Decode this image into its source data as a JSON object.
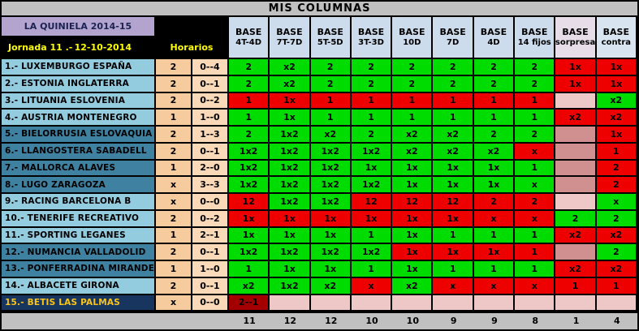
{
  "title": "MIS COLUMNAS",
  "header": {
    "competition": "LA QUINIELA 2014-15",
    "jornada": "Jornada 11 .-",
    "date": "12-10-2014",
    "horarios": "Horarios",
    "base_label": "BASE",
    "columns": [
      "4T-4D",
      "7T-7D",
      "5T-5D",
      "3T-3D",
      "10D",
      "7D",
      "4D",
      "14 fijos",
      "sorpresa",
      "contra"
    ]
  },
  "legend": {
    "hit_color": "#00dc00",
    "miss_color": "#ee0000",
    "empty_light_color": "#eec7c7",
    "empty_dark_color": "#d19090",
    "void_color": "#a50000",
    "row_light_color": "#93cbdf",
    "row_dark_color": "#3f81a1",
    "row_navy_color": "#17355f"
  },
  "rows": [
    {
      "name": "1.- LUXEMBURGO ESPAÑA",
      "pick": "2",
      "score": "0--4",
      "shade": "light",
      "cells": [
        {
          "v": "2",
          "c": "g"
        },
        {
          "v": "x2",
          "c": "g"
        },
        {
          "v": "2",
          "c": "g"
        },
        {
          "v": "2",
          "c": "g"
        },
        {
          "v": "2",
          "c": "g"
        },
        {
          "v": "2",
          "c": "g"
        },
        {
          "v": "2",
          "c": "g"
        },
        {
          "v": "2",
          "c": "g"
        },
        {
          "v": "1x",
          "c": "r"
        },
        {
          "v": "1x",
          "c": "r"
        }
      ]
    },
    {
      "name": "2.- ESTONIA INGLATERRA",
      "pick": "2",
      "score": "0--1",
      "shade": "light",
      "cells": [
        {
          "v": "2",
          "c": "g"
        },
        {
          "v": "x2",
          "c": "g"
        },
        {
          "v": "2",
          "c": "g"
        },
        {
          "v": "2",
          "c": "g"
        },
        {
          "v": "2",
          "c": "g"
        },
        {
          "v": "2",
          "c": "g"
        },
        {
          "v": "2",
          "c": "g"
        },
        {
          "v": "2",
          "c": "g"
        },
        {
          "v": "1x",
          "c": "r"
        },
        {
          "v": "1x",
          "c": "r"
        }
      ]
    },
    {
      "name": "3.- LITUANIA ESLOVENIA",
      "pick": "2",
      "score": "0--2",
      "shade": "light",
      "cells": [
        {
          "v": "1",
          "c": "r"
        },
        {
          "v": "1x",
          "c": "r"
        },
        {
          "v": "1",
          "c": "r"
        },
        {
          "v": "1",
          "c": "r"
        },
        {
          "v": "1",
          "c": "r"
        },
        {
          "v": "1",
          "c": "r"
        },
        {
          "v": "1",
          "c": "r"
        },
        {
          "v": "1",
          "c": "r"
        },
        {
          "v": "",
          "c": "pl"
        },
        {
          "v": "x2",
          "c": "g"
        }
      ]
    },
    {
      "name": "4.- AUSTRIA MONTENEGRO",
      "pick": "1",
      "score": "1--0",
      "shade": "light",
      "cells": [
        {
          "v": "1",
          "c": "g"
        },
        {
          "v": "1x",
          "c": "g"
        },
        {
          "v": "1",
          "c": "g"
        },
        {
          "v": "1",
          "c": "g"
        },
        {
          "v": "1",
          "c": "g"
        },
        {
          "v": "1",
          "c": "g"
        },
        {
          "v": "1",
          "c": "g"
        },
        {
          "v": "1",
          "c": "g"
        },
        {
          "v": "x2",
          "c": "r"
        },
        {
          "v": "x2",
          "c": "r"
        }
      ]
    },
    {
      "name": "5.- BIELORRUSIA ESLOVAQUIA",
      "pick": "2",
      "score": "1--3",
      "shade": "dark",
      "cells": [
        {
          "v": "2",
          "c": "g"
        },
        {
          "v": "1x2",
          "c": "g"
        },
        {
          "v": "x2",
          "c": "g"
        },
        {
          "v": "2",
          "c": "g"
        },
        {
          "v": "x2",
          "c": "g"
        },
        {
          "v": "x2",
          "c": "g"
        },
        {
          "v": "2",
          "c": "g"
        },
        {
          "v": "2",
          "c": "g"
        },
        {
          "v": "",
          "c": "pd"
        },
        {
          "v": "1x",
          "c": "r"
        }
      ]
    },
    {
      "name": "6.- LLANGOSTERA SABADELL",
      "pick": "2",
      "score": "0--1",
      "shade": "dark",
      "cells": [
        {
          "v": "1x2",
          "c": "g"
        },
        {
          "v": "1x2",
          "c": "g"
        },
        {
          "v": "1x2",
          "c": "g"
        },
        {
          "v": "1x2",
          "c": "g"
        },
        {
          "v": "x2",
          "c": "g"
        },
        {
          "v": "x2",
          "c": "g"
        },
        {
          "v": "x2",
          "c": "g"
        },
        {
          "v": "x",
          "c": "r"
        },
        {
          "v": "",
          "c": "pd"
        },
        {
          "v": "1",
          "c": "r"
        }
      ]
    },
    {
      "name": "7.- MALLORCA ALAVES",
      "pick": "1",
      "score": "2--0",
      "shade": "dark",
      "cells": [
        {
          "v": "1x2",
          "c": "g"
        },
        {
          "v": "1x2",
          "c": "g"
        },
        {
          "v": "1x2",
          "c": "g"
        },
        {
          "v": "1x",
          "c": "g"
        },
        {
          "v": "1x",
          "c": "g"
        },
        {
          "v": "1x",
          "c": "g"
        },
        {
          "v": "1x",
          "c": "g"
        },
        {
          "v": "1",
          "c": "g"
        },
        {
          "v": "",
          "c": "pd"
        },
        {
          "v": "2",
          "c": "r"
        }
      ]
    },
    {
      "name": "8.- LUGO ZARAGOZA",
      "pick": "x",
      "score": "3--3",
      "shade": "dark",
      "cells": [
        {
          "v": "1x2",
          "c": "g"
        },
        {
          "v": "1x2",
          "c": "g"
        },
        {
          "v": "1x2",
          "c": "g"
        },
        {
          "v": "1x2",
          "c": "g"
        },
        {
          "v": "1x",
          "c": "g"
        },
        {
          "v": "1x",
          "c": "g"
        },
        {
          "v": "1x",
          "c": "g"
        },
        {
          "v": "x",
          "c": "g"
        },
        {
          "v": "",
          "c": "pd"
        },
        {
          "v": "2",
          "c": "r"
        }
      ]
    },
    {
      "name": "9.- RACING BARCELONA B",
      "pick": "x",
      "score": "0--0",
      "shade": "light",
      "cells": [
        {
          "v": "12",
          "c": "r"
        },
        {
          "v": "1x2",
          "c": "g"
        },
        {
          "v": "1x2",
          "c": "g"
        },
        {
          "v": "12",
          "c": "r"
        },
        {
          "v": "12",
          "c": "r"
        },
        {
          "v": "12",
          "c": "r"
        },
        {
          "v": "2",
          "c": "r"
        },
        {
          "v": "2",
          "c": "r"
        },
        {
          "v": "",
          "c": "pl"
        },
        {
          "v": "x",
          "c": "g"
        }
      ]
    },
    {
      "name": "10.- TENERIFE RECREATIVO",
      "pick": "2",
      "score": "0--2",
      "shade": "light",
      "cells": [
        {
          "v": "1x",
          "c": "r"
        },
        {
          "v": "1x",
          "c": "r"
        },
        {
          "v": "1x",
          "c": "r"
        },
        {
          "v": "1x",
          "c": "r"
        },
        {
          "v": "1x",
          "c": "r"
        },
        {
          "v": "1x",
          "c": "r"
        },
        {
          "v": "x",
          "c": "r"
        },
        {
          "v": "x",
          "c": "r"
        },
        {
          "v": "2",
          "c": "g"
        },
        {
          "v": "2",
          "c": "g"
        }
      ]
    },
    {
      "name": "11.- SPORTING LEGANES",
      "pick": "1",
      "score": "2--1",
      "shade": "light",
      "cells": [
        {
          "v": "1x",
          "c": "g"
        },
        {
          "v": "1x",
          "c": "g"
        },
        {
          "v": "1x",
          "c": "g"
        },
        {
          "v": "1",
          "c": "g"
        },
        {
          "v": "1x",
          "c": "g"
        },
        {
          "v": "1",
          "c": "g"
        },
        {
          "v": "1",
          "c": "g"
        },
        {
          "v": "1",
          "c": "g"
        },
        {
          "v": "x2",
          "c": "r"
        },
        {
          "v": "x2",
          "c": "r"
        }
      ]
    },
    {
      "name": "12.- NUMANCIA VALLADOLID",
      "pick": "2",
      "score": "0--1",
      "shade": "dark",
      "cells": [
        {
          "v": "1x2",
          "c": "g"
        },
        {
          "v": "1x2",
          "c": "g"
        },
        {
          "v": "1x2",
          "c": "g"
        },
        {
          "v": "1x2",
          "c": "g"
        },
        {
          "v": "1x",
          "c": "r"
        },
        {
          "v": "1x",
          "c": "r"
        },
        {
          "v": "1x",
          "c": "r"
        },
        {
          "v": "1",
          "c": "r"
        },
        {
          "v": "",
          "c": "pd"
        },
        {
          "v": "2",
          "c": "g"
        }
      ]
    },
    {
      "name": "13.- PONFERRADINA MIRANDES",
      "pick": "1",
      "score": "1--0",
      "shade": "dark",
      "cells": [
        {
          "v": "1",
          "c": "g"
        },
        {
          "v": "1x",
          "c": "g"
        },
        {
          "v": "1x",
          "c": "g"
        },
        {
          "v": "1",
          "c": "g"
        },
        {
          "v": "1x",
          "c": "g"
        },
        {
          "v": "1",
          "c": "g"
        },
        {
          "v": "1",
          "c": "g"
        },
        {
          "v": "1",
          "c": "g"
        },
        {
          "v": "x2",
          "c": "r"
        },
        {
          "v": "x2",
          "c": "r"
        }
      ]
    },
    {
      "name": "14.- ALBACETE GIRONA",
      "pick": "2",
      "score": "0--1",
      "shade": "light",
      "cells": [
        {
          "v": "x2",
          "c": "g"
        },
        {
          "v": "1x2",
          "c": "g"
        },
        {
          "v": "x2",
          "c": "g"
        },
        {
          "v": "x",
          "c": "r"
        },
        {
          "v": "x2",
          "c": "g"
        },
        {
          "v": "x",
          "c": "r"
        },
        {
          "v": "x",
          "c": "r"
        },
        {
          "v": "x",
          "c": "r"
        },
        {
          "v": "1",
          "c": "r"
        },
        {
          "v": "1",
          "c": "r"
        }
      ]
    },
    {
      "name": "15.- BETIS LAS PALMAS",
      "pick": "x",
      "score": "0--0",
      "shade": "navy",
      "cells": [
        {
          "v": "2--1",
          "c": "dr"
        },
        {
          "v": "",
          "c": "pl"
        },
        {
          "v": "",
          "c": "pl"
        },
        {
          "v": "",
          "c": "pl"
        },
        {
          "v": "",
          "c": "pl"
        },
        {
          "v": "",
          "c": "pl"
        },
        {
          "v": "",
          "c": "pl"
        },
        {
          "v": "",
          "c": "pl"
        },
        {
          "v": "",
          "c": "pl"
        },
        {
          "v": "",
          "c": "pl"
        }
      ]
    }
  ],
  "totals": [
    "11",
    "12",
    "12",
    "10",
    "10",
    "9",
    "9",
    "8",
    "1",
    "4"
  ]
}
